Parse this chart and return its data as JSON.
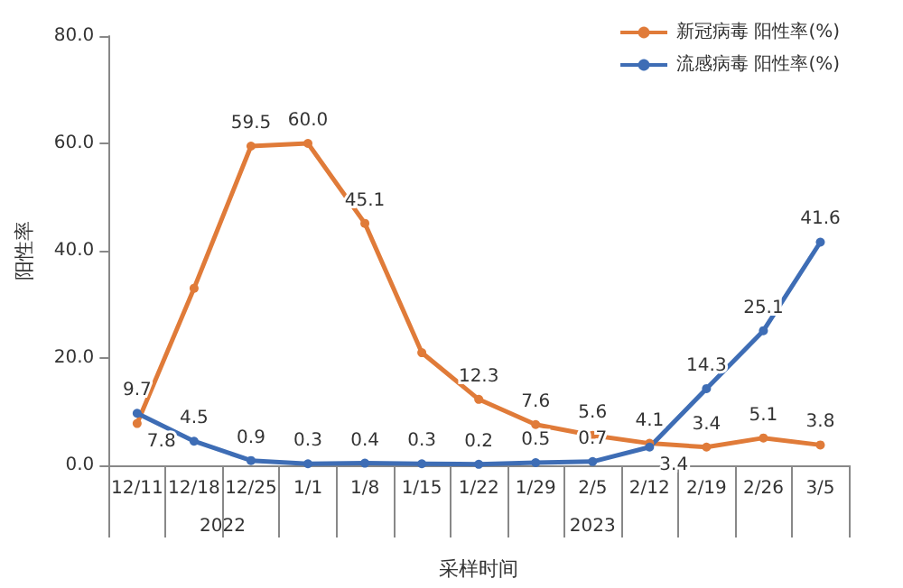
{
  "chart_data": {
    "type": "line",
    "ylabel": "阳性率",
    "xlabel": "采样时间",
    "categories": [
      "12/11",
      "12/18",
      "12/25",
      "1/1",
      "1/8",
      "1/15",
      "1/22",
      "1/29",
      "2/5",
      "2/12",
      "2/19",
      "2/26",
      "3/5"
    ],
    "series": [
      {
        "name": "新冠病毒 阳性率(%)",
        "color": "#e07b39",
        "values": [
          7.8,
          33,
          59.5,
          60.0,
          45.1,
          21,
          12.3,
          7.6,
          5.6,
          4.1,
          3.4,
          5.1,
          3.8
        ],
        "value_labels": [
          "7.8",
          null,
          "59.5",
          "60.0",
          "45.1",
          null,
          "12.3",
          "7.6",
          "5.6",
          "4.1",
          "3.4",
          "5.1",
          "3.8"
        ]
      },
      {
        "name": "流感病毒 阳性率(%)",
        "color": "#3e6db5",
        "values": [
          9.7,
          4.5,
          0.9,
          0.3,
          0.4,
          0.3,
          0.2,
          0.5,
          0.7,
          3.4,
          14.3,
          25.1,
          41.6
        ],
        "value_labels": [
          "9.7",
          "4.5",
          "0.9",
          "0.3",
          "0.4",
          "0.3",
          "0.2",
          "0.5",
          "0.7",
          "3.4",
          "14.3",
          "25.1",
          "41.6"
        ]
      }
    ],
    "ylim": [
      0,
      80
    ],
    "yticks": [
      {
        "value": 0,
        "label": "0.0"
      },
      {
        "value": 20,
        "label": "20.0"
      },
      {
        "value": 40,
        "label": "40.0"
      },
      {
        "value": 60,
        "label": "60.0"
      },
      {
        "value": 80,
        "label": "80.0"
      }
    ],
    "annotations": [
      "2022",
      "2023"
    ],
    "grid": false,
    "legend": "top right",
    "marker": "circle",
    "line_style": "solid"
  }
}
